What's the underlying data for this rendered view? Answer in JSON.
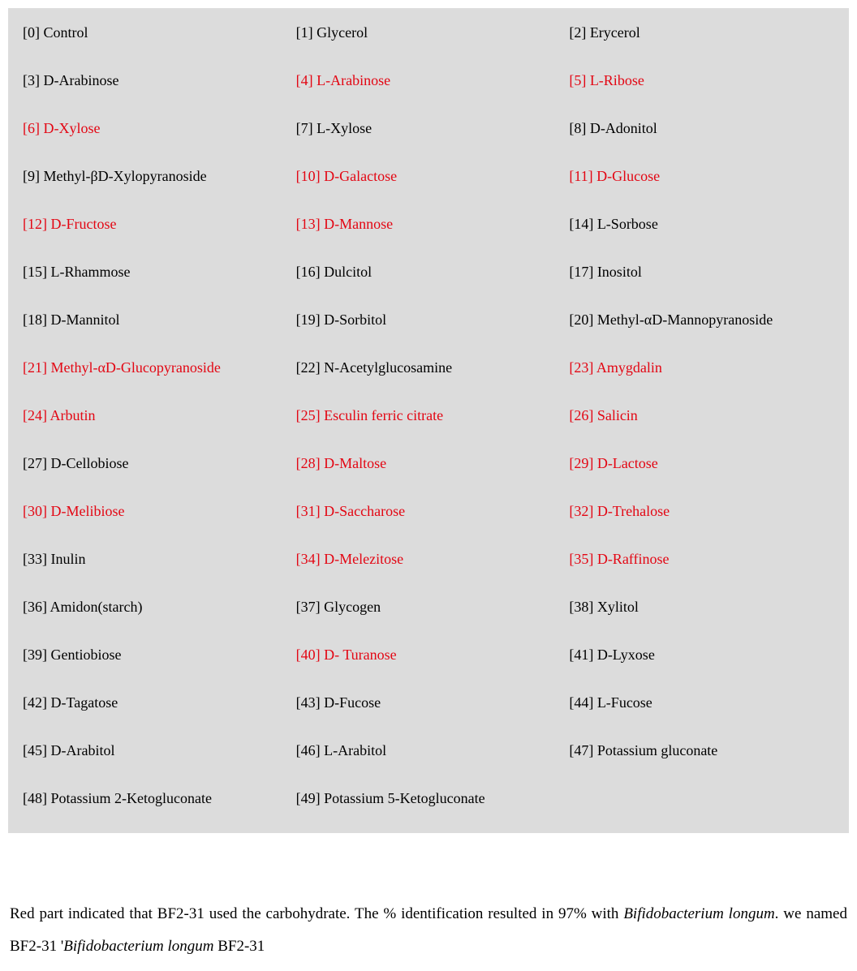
{
  "grid": {
    "background_color": "#dcdcdc",
    "text_color_normal": "#000000",
    "text_color_positive": "#e30613",
    "font_size": 18,
    "columns": 3,
    "items": [
      {
        "idx": 0,
        "label": "Control",
        "pos": false
      },
      {
        "idx": 1,
        "label": "Glycerol",
        "pos": false
      },
      {
        "idx": 2,
        "label": "Erycerol",
        "pos": false
      },
      {
        "idx": 3,
        "label": "D-Arabinose",
        "pos": false
      },
      {
        "idx": 4,
        "label": "L-Arabinose",
        "pos": true
      },
      {
        "idx": 5,
        "label": "L-Ribose",
        "pos": true
      },
      {
        "idx": 6,
        "label": "D-Xylose",
        "pos": true
      },
      {
        "idx": 7,
        "label": "L-Xylose",
        "pos": false
      },
      {
        "idx": 8,
        "label": "D-Adonitol",
        "pos": false
      },
      {
        "idx": 9,
        "label": "Methyl-βD-Xylopyranoside",
        "pos": false
      },
      {
        "idx": 10,
        "label": "D-Galactose",
        "pos": true
      },
      {
        "idx": 11,
        "label": "D-Glucose",
        "pos": true
      },
      {
        "idx": 12,
        "label": "D-Fructose",
        "pos": true
      },
      {
        "idx": 13,
        "label": "D-Mannose",
        "pos": true
      },
      {
        "idx": 14,
        "label": "L-Sorbose",
        "pos": false
      },
      {
        "idx": 15,
        "label": "L-Rhammose",
        "pos": false
      },
      {
        "idx": 16,
        "label": "Dulcitol",
        "pos": false
      },
      {
        "idx": 17,
        "label": "Inositol",
        "pos": false
      },
      {
        "idx": 18,
        "label": "D-Mannitol",
        "pos": false
      },
      {
        "idx": 19,
        "label": "D-Sorbitol",
        "pos": false
      },
      {
        "idx": 20,
        "label": "Methyl-αD-Mannopyranoside",
        "pos": false
      },
      {
        "idx": 21,
        "label": "Methyl-αD-Glucopyranoside",
        "pos": true
      },
      {
        "idx": 22,
        "label": "N-Acetylglucosamine",
        "pos": false
      },
      {
        "idx": 23,
        "label": "Amygdalin",
        "pos": true
      },
      {
        "idx": 24,
        "label": "Arbutin",
        "pos": true
      },
      {
        "idx": 25,
        "label": "Esculin ferric citrate",
        "pos": true
      },
      {
        "idx": 26,
        "label": "Salicin",
        "pos": true
      },
      {
        "idx": 27,
        "label": "D-Cellobiose",
        "pos": false
      },
      {
        "idx": 28,
        "label": "D-Maltose",
        "pos": true
      },
      {
        "idx": 29,
        "label": "D-Lactose",
        "pos": true
      },
      {
        "idx": 30,
        "label": "D-Melibiose",
        "pos": true
      },
      {
        "idx": 31,
        "label": "D-Saccharose",
        "pos": true
      },
      {
        "idx": 32,
        "label": "D-Trehalose",
        "pos": true
      },
      {
        "idx": 33,
        "label": "Inulin",
        "pos": false
      },
      {
        "idx": 34,
        "label": "D-Melezitose",
        "pos": true
      },
      {
        "idx": 35,
        "label": "D-Raffinose",
        "pos": true
      },
      {
        "idx": 36,
        "label": "Amidon(starch)",
        "pos": false
      },
      {
        "idx": 37,
        "label": "Glycogen",
        "pos": false
      },
      {
        "idx": 38,
        "label": "Xylitol",
        "pos": false
      },
      {
        "idx": 39,
        "label": "Gentiobiose",
        "pos": false
      },
      {
        "idx": 40,
        "label": "D- Turanose",
        "pos": true
      },
      {
        "idx": 41,
        "label": "D-Lyxose",
        "pos": false
      },
      {
        "idx": 42,
        "label": "D-Tagatose",
        "pos": false
      },
      {
        "idx": 43,
        "label": "D-Fucose",
        "pos": false
      },
      {
        "idx": 44,
        "label": "L-Fucose",
        "pos": false
      },
      {
        "idx": 45,
        "label": "D-Arabitol",
        "pos": false
      },
      {
        "idx": 46,
        "label": "L-Arabitol",
        "pos": false
      },
      {
        "idx": 47,
        "label": "Potassium gluconate",
        "pos": false
      },
      {
        "idx": 48,
        "label": "Potassium 2-Ketogluconate",
        "pos": false
      },
      {
        "idx": 49,
        "label": "Potassium 5-Ketogluconate",
        "pos": false
      }
    ]
  },
  "caption": {
    "part1": "Red part indicated that BF2-31 used the carbohydrate. The % identification resulted in 97% with ",
    "italic1": "Bifidobacterium longum",
    "part2": ". we named BF2-31 '",
    "italic2": "Bifidobacterium longum",
    "part3": " BF2-31"
  }
}
